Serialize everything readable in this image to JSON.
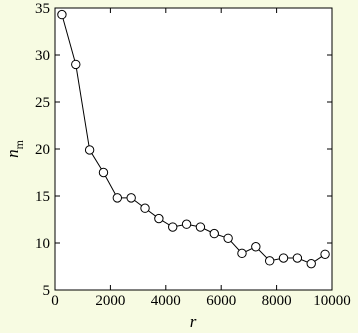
{
  "chart_data": {
    "type": "line",
    "xlabel": "r",
    "ylabel": "n",
    "ylabel_subscript": "m",
    "xlim": [
      0,
      10000
    ],
    "ylim": [
      5,
      35
    ],
    "xticks": [
      0,
      2000,
      4000,
      6000,
      8000,
      10000
    ],
    "yticks": [
      5,
      10,
      15,
      20,
      25,
      30,
      35
    ],
    "grid": false,
    "marker": "open-circle",
    "series": [
      {
        "x": [
          250,
          750,
          1250,
          1750,
          2250,
          2750,
          3250,
          3750,
          4250,
          4750,
          5250,
          5750,
          6250,
          6750,
          7250,
          7750,
          8250,
          8750,
          9250,
          9750
        ],
        "y": [
          34.3,
          29.0,
          19.9,
          17.5,
          14.8,
          14.8,
          13.7,
          12.6,
          11.7,
          12.0,
          11.7,
          11.0,
          10.5,
          8.9,
          9.6,
          8.1,
          8.4,
          8.4,
          7.8,
          8.8
        ]
      }
    ]
  },
  "colors": {
    "background": "#f7fbe2",
    "plot_background": "#ffffff",
    "line": "#000000",
    "marker_fill": "#ffffff"
  }
}
